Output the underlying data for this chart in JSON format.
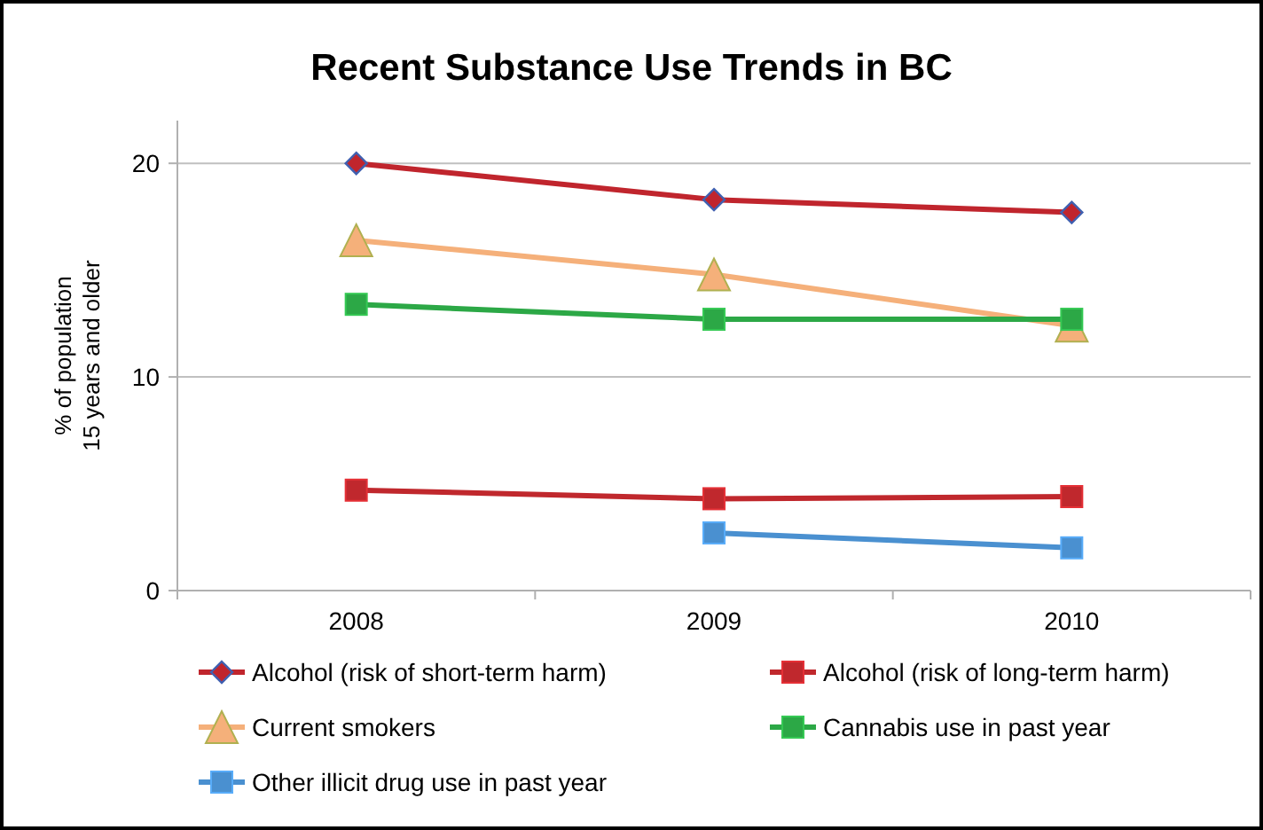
{
  "chart_data": {
    "type": "line",
    "title": "Recent Substance Use Trends in BC",
    "ylabel": "% of population\n15 years and older",
    "categories": [
      "2008",
      "2009",
      "2010"
    ],
    "series": [
      {
        "name": "Alcohol (risk of short-term harm)",
        "color": "#c0252d",
        "marker": "diamond",
        "values": [
          20.0,
          18.3,
          17.7
        ]
      },
      {
        "name": "Alcohol (risk of long-term harm)",
        "color": "#c0282d",
        "marker": "square",
        "values": [
          4.7,
          4.3,
          4.4
        ]
      },
      {
        "name": "Current smokers",
        "color": "#f5b07a",
        "marker": "triangle",
        "values": [
          16.4,
          14.8,
          12.4
        ]
      },
      {
        "name": "Cannabis use in past year",
        "color": "#2ca846",
        "marker": "square",
        "values": [
          13.4,
          12.7,
          12.7
        ]
      },
      {
        "name": "Other illicit drug use in past year",
        "color": "#4a90d0",
        "marker": "square",
        "values": [
          null,
          2.7,
          2.0
        ]
      }
    ],
    "ylim": [
      0,
      22
    ],
    "yticks": [
      0,
      10,
      20
    ],
    "grid": "y",
    "legend": "bottom",
    "line_style": "solid"
  }
}
